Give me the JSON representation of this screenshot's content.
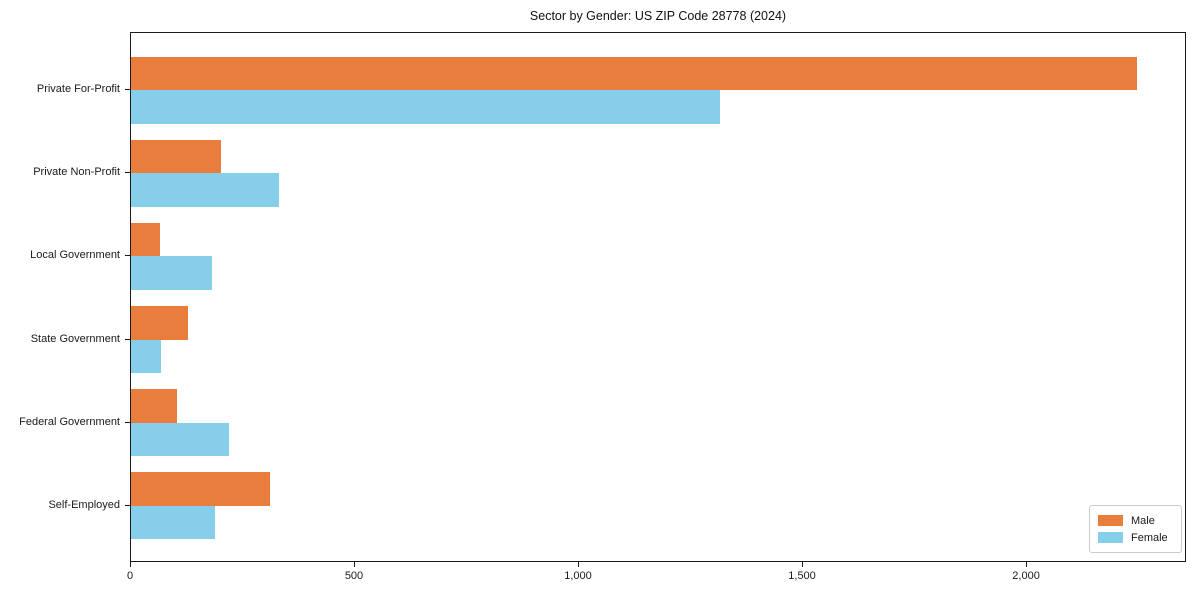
{
  "chart_data": {
    "type": "bar",
    "orientation": "horizontal",
    "title": "Sector by Gender: US ZIP Code 28778 (2024)",
    "xlabel": "",
    "ylabel": "",
    "categories": [
      "Private For-Profit",
      "Private Non-Profit",
      "Local Government",
      "State Government",
      "Federal Government",
      "Self-Employed"
    ],
    "series": [
      {
        "name": "Male",
        "color": "#E87D3E",
        "values": [
          2245,
          200,
          65,
          127,
          102,
          310
        ]
      },
      {
        "name": "Female",
        "color": "#87CEEB",
        "values": [
          1315,
          330,
          180,
          67,
          219,
          187
        ]
      }
    ],
    "xlim": [
      0,
      2357
    ],
    "xticks": [
      {
        "value": 0,
        "label": "0"
      },
      {
        "value": 500,
        "label": "500"
      },
      {
        "value": 1000,
        "label": "1,000"
      },
      {
        "value": 1500,
        "label": "1,500"
      },
      {
        "value": 2000,
        "label": "2,000"
      }
    ],
    "grid": false,
    "legend_position": "lower right"
  }
}
